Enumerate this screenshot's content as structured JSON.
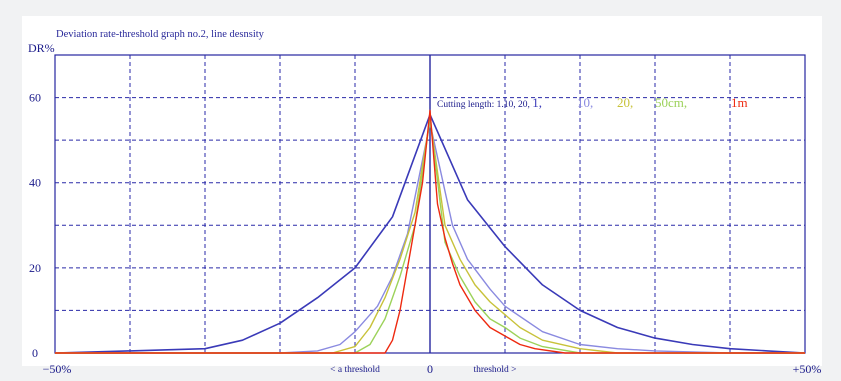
{
  "chart_data": {
    "type": "line",
    "title": "Deviation rate-threshold graph no.2, line desnsity",
    "ylabel": "DR%",
    "xlabel": "",
    "xlim": [
      -50,
      50
    ],
    "ylim": [
      0,
      70
    ],
    "x_tick_labels": {
      "left": "−50%",
      "center": "0",
      "right": "+50%"
    },
    "y_ticks": [
      0,
      20,
      40,
      60
    ],
    "x_annotations": {
      "left": "< a threshold",
      "right": "threshold >"
    },
    "grid": true,
    "legend": {
      "placement": "top-right",
      "prefix": "Cutting length: 1.10, 20, ",
      "entries": [
        {
          "label": "1,",
          "color": "#3a3ab8"
        },
        {
          "label": "10,",
          "color": "#8a8ae0"
        },
        {
          "label": "20,",
          "color": "#c8c23a"
        },
        {
          "label": "50cm,",
          "color": "#9cd25a"
        },
        {
          "label": "1m",
          "color": "#ee2a10"
        }
      ]
    },
    "series": [
      {
        "color": "#3a3ab8",
        "x": [
          -50,
          -40,
          -30,
          -25,
          -20,
          -15,
          -10,
          -5,
          0,
          5,
          10,
          15,
          20,
          25,
          30,
          35,
          40,
          45,
          50
        ],
        "y": [
          0,
          0.5,
          1,
          3,
          7,
          13,
          20,
          32,
          56,
          36,
          25,
          16,
          10,
          6,
          3.5,
          2,
          1,
          0.5,
          0
        ]
      },
      {
        "color": "#8a8ae0",
        "x": [
          -50,
          -20,
          -15,
          -12,
          -10,
          -7,
          -5,
          -3,
          0,
          3,
          5,
          8,
          10,
          15,
          20,
          25,
          30,
          40,
          50
        ],
        "y": [
          0,
          0,
          0.5,
          2,
          5,
          11,
          18,
          28,
          54,
          30,
          22,
          15,
          11,
          5,
          2,
          1,
          0.5,
          0,
          0
        ]
      },
      {
        "color": "#c8c23a",
        "x": [
          -50,
          -13,
          -10,
          -8,
          -6,
          -4,
          -2,
          0,
          2,
          4,
          6,
          8,
          10,
          12,
          15,
          20,
          25,
          50
        ],
        "y": [
          0,
          0,
          1.5,
          6,
          13,
          22,
          33,
          55,
          30,
          22,
          16,
          12,
          9,
          6,
          3,
          1,
          0,
          0
        ]
      },
      {
        "color": "#9cd25a",
        "x": [
          -50,
          -10,
          -8,
          -6,
          -4,
          -2,
          0,
          2,
          4,
          6,
          8,
          10,
          12,
          15,
          20,
          50
        ],
        "y": [
          0,
          0,
          2,
          8,
          18,
          30,
          55,
          26,
          18,
          12,
          8,
          6,
          3.5,
          1.5,
          0,
          0
        ]
      },
      {
        "color": "#ee2a10",
        "x": [
          -50,
          -6,
          -5,
          -4,
          -3,
          -2,
          -1,
          0,
          1,
          2,
          3,
          4,
          6,
          8,
          10,
          12,
          14,
          18,
          50
        ],
        "y": [
          0,
          0,
          3,
          10,
          20,
          30,
          40,
          57,
          35,
          27,
          21,
          16,
          10,
          6,
          4,
          2,
          1,
          0,
          0
        ]
      }
    ]
  }
}
